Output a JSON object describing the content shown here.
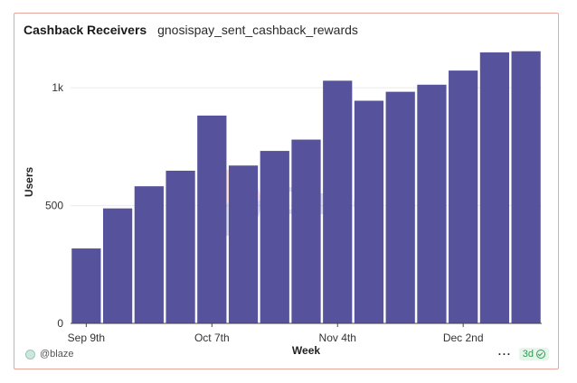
{
  "header": {
    "title": "Cashback Receivers",
    "query_name": "gnosispay_sent_cashback_rewards"
  },
  "watermark": "Dune",
  "footer": {
    "author": "@blaze",
    "more": "···",
    "refresh_badge": "3d"
  },
  "colors": {
    "bar": "#56529b",
    "grid": "#ebebeb",
    "card_border": "#e8a79b",
    "badge_green": "#2e9b4f"
  },
  "chart_data": {
    "type": "bar",
    "xlabel": "Week",
    "ylabel": "Users",
    "ylim": [
      0,
      1200
    ],
    "yticks": [
      0,
      500,
      1000
    ],
    "ytick_labels": [
      "0",
      "500",
      "1k"
    ],
    "categories": [
      "2024-09-09",
      "2024-09-16",
      "2024-09-23",
      "2024-09-30",
      "2024-10-07",
      "2024-10-14",
      "2024-10-21",
      "2024-10-28",
      "2024-11-04",
      "2024-11-11",
      "2024-11-18",
      "2024-11-25",
      "2024-12-02",
      "2024-12-09",
      "2024-12-16"
    ],
    "xtick_labels": [
      {
        "category": "2024-09-09",
        "label": "Sep 9th"
      },
      {
        "category": "2024-10-07",
        "label": "Oct 7th"
      },
      {
        "category": "2024-11-04",
        "label": "Nov 4th"
      },
      {
        "category": "2024-12-02",
        "label": "Dec 2nd"
      }
    ],
    "values": [
      318,
      488,
      582,
      648,
      882,
      670,
      732,
      780,
      1030,
      945,
      983,
      1013,
      1073,
      1150,
      1155
    ],
    "grid": true,
    "legend": "none"
  }
}
